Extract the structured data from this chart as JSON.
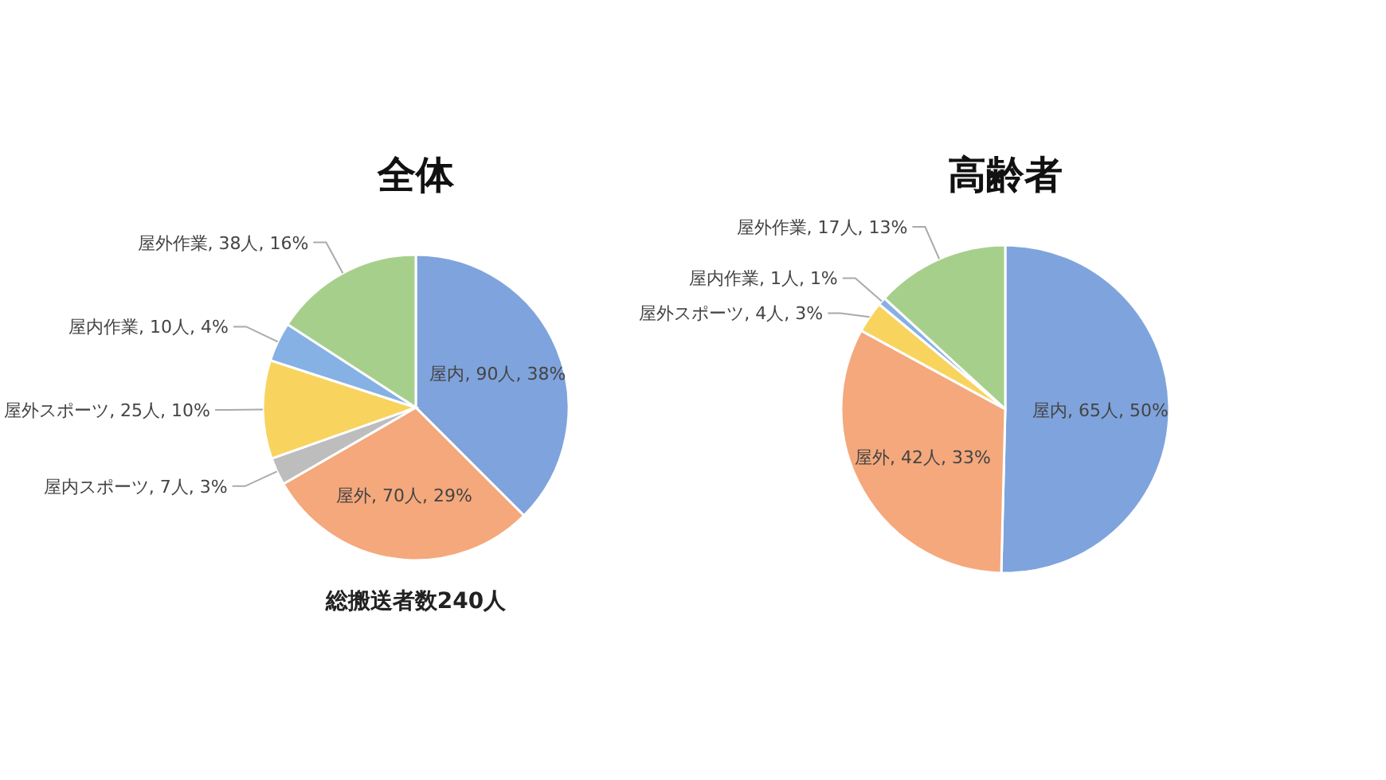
{
  "chart_data": [
    {
      "type": "pie",
      "title": "全体",
      "categories": [
        "屋内",
        "屋外",
        "屋内スポーツ",
        "屋外スポーツ",
        "屋内作業",
        "屋外作業"
      ],
      "values": [
        90,
        70,
        7,
        25,
        10,
        38
      ],
      "value_labels": [
        "90人, 38%",
        "70人, 29%",
        "7人, 3%",
        "25人, 10%",
        "10人, 4%",
        "38人, 16%"
      ],
      "colors": [
        "#7fa3dc",
        "#f4a87c",
        "#bdbdbd",
        "#f8d35e",
        "#86b1e4",
        "#a7cf8c"
      ],
      "annotations": [
        "総搬送者数240人"
      ]
    },
    {
      "type": "pie",
      "title": "高齢者",
      "categories": [
        "屋内",
        "屋外",
        "屋外スポーツ",
        "屋内作業",
        "屋外作業"
      ],
      "values": [
        65,
        42,
        4,
        1,
        17
      ],
      "value_labels": [
        "65人, 50%",
        "42人, 33%",
        "4人, 3%",
        "1人, 1%",
        "17人, 13%"
      ],
      "colors": [
        "#7fa3dc",
        "#f4a87c",
        "#f8d35e",
        "#86b1e4",
        "#a7cf8c"
      ]
    }
  ]
}
